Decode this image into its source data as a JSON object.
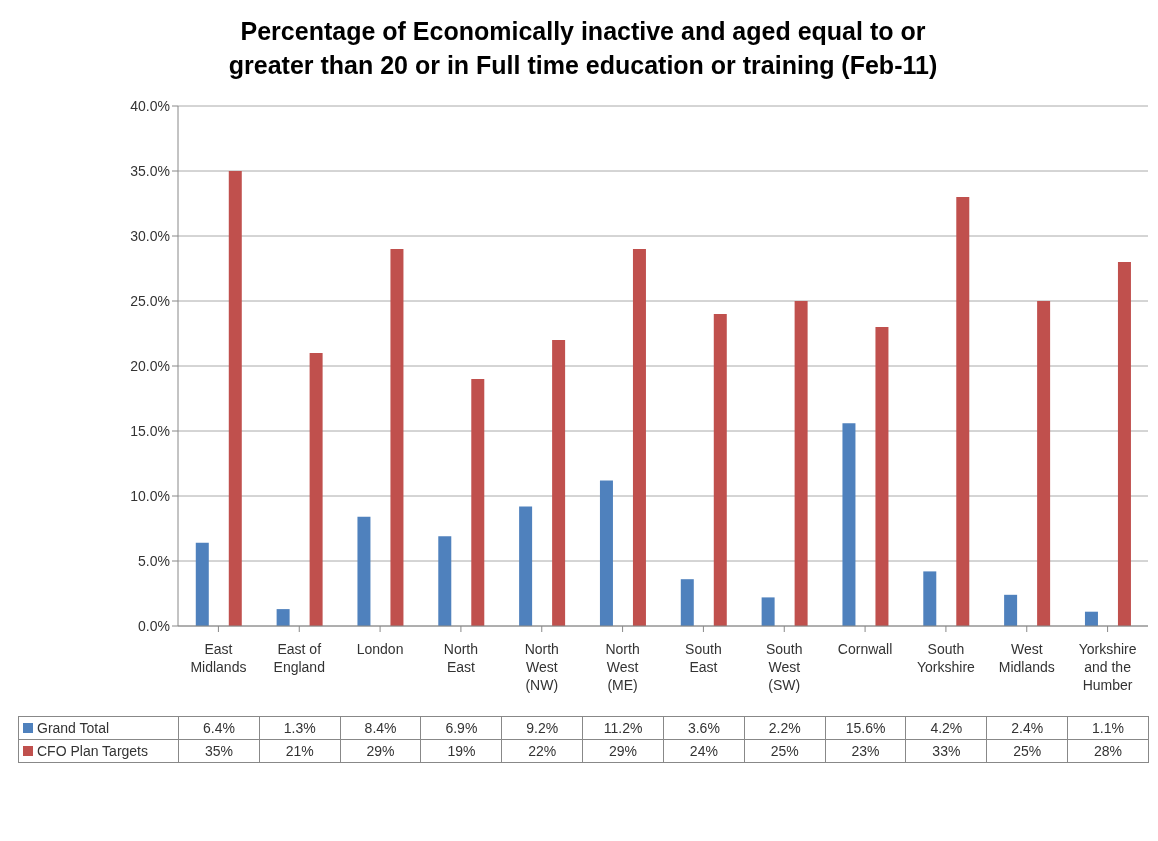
{
  "chart_data": {
    "type": "bar",
    "title": "Percentage of Economically inactive and aged equal to or greater than 20 or in Full time education or training (Feb-11)",
    "categories": [
      "East Midlands",
      "East of England",
      "London",
      "North East",
      "North West (NW)",
      "North West (ME)",
      "South East",
      "South West (SW)",
      "Cornwall",
      "South Yorkshire",
      "West Midlands",
      "Yorkshire and the Humber"
    ],
    "series": [
      {
        "name": "Grand Total",
        "color": "#4f81bd",
        "values": [
          6.4,
          1.3,
          8.4,
          6.9,
          9.2,
          11.2,
          3.6,
          2.2,
          15.6,
          4.2,
          2.4,
          1.1
        ],
        "value_labels": [
          "6.4%",
          "1.3%",
          "8.4%",
          "6.9%",
          "9.2%",
          "11.2%",
          "3.6%",
          "2.2%",
          "15.6%",
          "4.2%",
          "2.4%",
          "1.1%"
        ]
      },
      {
        "name": "CFO Plan Targets",
        "color": "#c0504d",
        "values": [
          35,
          21,
          29,
          19,
          22,
          29,
          24,
          25,
          23,
          33,
          25,
          28
        ],
        "value_labels": [
          "35%",
          "21%",
          "29%",
          "19%",
          "22%",
          "29%",
          "24%",
          "25%",
          "23%",
          "33%",
          "25%",
          "28%"
        ]
      }
    ],
    "ylim": [
      0,
      40
    ],
    "yticks": [
      {
        "value": 0,
        "label": "0.0%"
      },
      {
        "value": 5,
        "label": "5.0%"
      },
      {
        "value": 10,
        "label": "10.0%"
      },
      {
        "value": 15,
        "label": "15.0%"
      },
      {
        "value": 20,
        "label": "20.0%"
      },
      {
        "value": 25,
        "label": "25.0%"
      },
      {
        "value": 30,
        "label": "30.0%"
      },
      {
        "value": 35,
        "label": "35.0%"
      },
      {
        "value": 40,
        "label": "40.0%"
      }
    ],
    "grid": "y",
    "legend": "bottom"
  }
}
